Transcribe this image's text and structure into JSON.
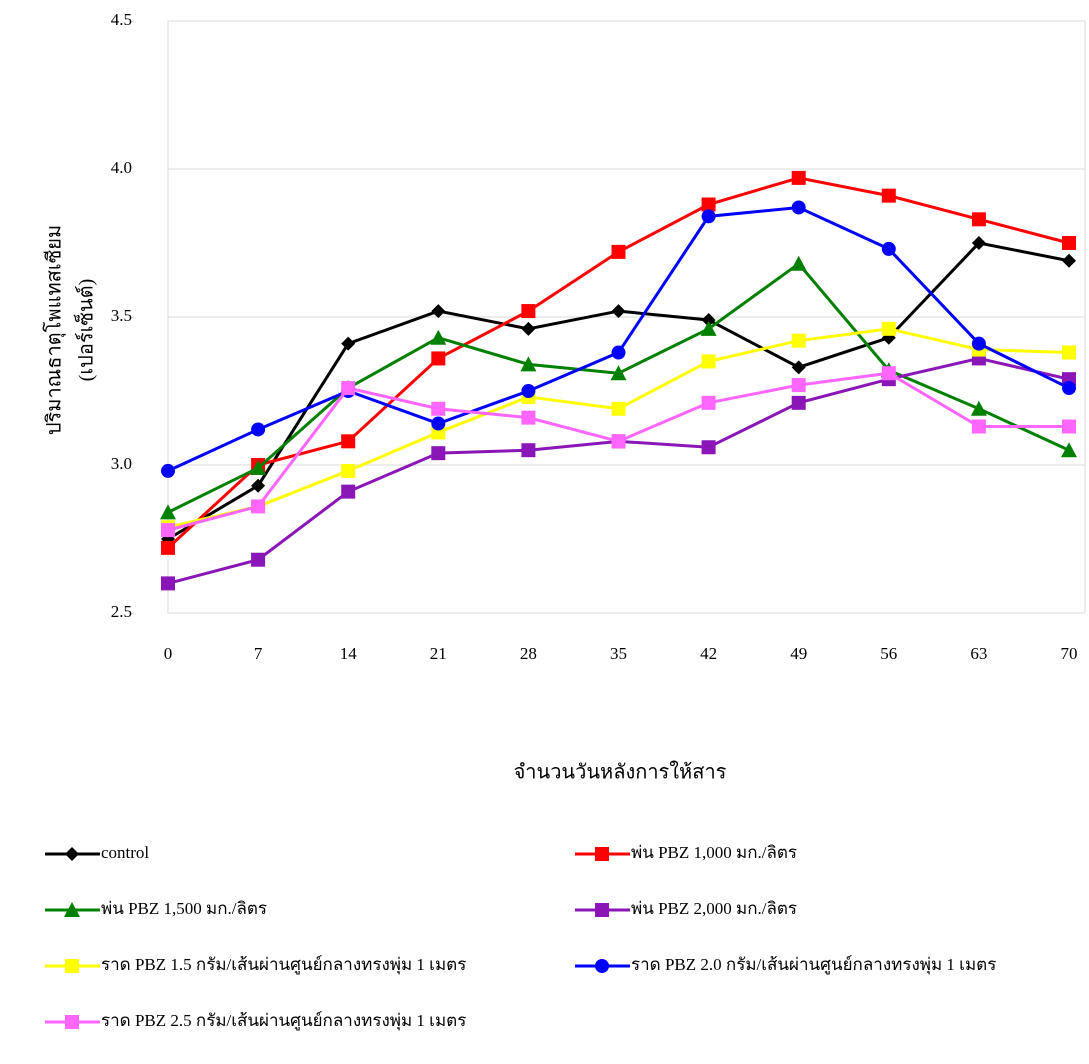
{
  "chart_data": {
    "type": "line",
    "y_label": [
      "ปริมาณธาตุโพแทสเซียม",
      "(เปอร์เซ็นต์)"
    ],
    "x_label": "จำนวนวันหลังการให้สาร",
    "x": [
      0,
      7,
      14,
      21,
      28,
      35,
      42,
      49,
      56,
      63,
      70
    ],
    "xlim": [
      0,
      70
    ],
    "xticks": [
      0,
      7,
      14,
      21,
      28,
      35,
      42,
      49,
      56,
      63,
      70
    ],
    "ylim": [
      2.5,
      4.5
    ],
    "yticks": [
      2.5,
      {
        "value": 3,
        "label": "3.0"
      },
      3.5,
      {
        "value": 4,
        "label": "4.0"
      },
      4.5
    ],
    "grid": true,
    "series": [
      {
        "name": "control",
        "color": "#000000",
        "marker": "diamond",
        "values": [
          2.75,
          2.93,
          3.41,
          3.52,
          3.46,
          3.52,
          3.49,
          3.33,
          3.43,
          3.75,
          3.69
        ]
      },
      {
        "name": "พ่น PBZ 1,000 มก./ลิตร",
        "color": "#ff0000",
        "marker": "square",
        "values": [
          2.72,
          3.0,
          3.08,
          3.36,
          3.52,
          3.72,
          3.88,
          3.97,
          3.91,
          3.83,
          3.75
        ]
      },
      {
        "name": "พ่น PBZ 1,500 มก./ลิตร",
        "color": "#008000",
        "marker": "triangle",
        "values": [
          2.84,
          2.99,
          3.26,
          3.43,
          3.34,
          3.31,
          3.46,
          3.68,
          3.32,
          3.19,
          3.05
        ]
      },
      {
        "name": "พ่น PBZ 2,000 มก./ลิตร",
        "color": "#8a16b8",
        "marker": "square",
        "values": [
          2.6,
          2.68,
          2.91,
          3.04,
          3.05,
          3.08,
          3.06,
          3.21,
          3.29,
          3.36,
          3.29
        ]
      },
      {
        "name": "ราด PBZ 1.5 กรัม/เส้นผ่านศูนย์กลางทรงพุ่ม 1 เมตร",
        "color": "#ffff00",
        "marker": "square",
        "values": [
          2.79,
          2.86,
          2.98,
          3.11,
          3.23,
          3.19,
          3.35,
          3.42,
          3.46,
          3.39,
          3.38
        ]
      },
      {
        "name": "ราด PBZ 2.0 กรัม/เส้นผ่านศูนย์กลางทรงพุ่ม 1 เมตร",
        "color": "#0000ff",
        "marker": "circle",
        "values": [
          2.98,
          3.12,
          3.25,
          3.14,
          3.25,
          3.38,
          3.84,
          3.87,
          3.73,
          3.41,
          3.26
        ]
      },
      {
        "name": "ราด PBZ 2.5 กรัม/เส้นผ่านศูนย์กลางทรงพุ่ม 1 เมตร",
        "color": "#ff66ff",
        "marker": "square",
        "values": [
          2.78,
          2.86,
          3.26,
          3.19,
          3.16,
          3.08,
          3.21,
          3.27,
          3.31,
          3.13,
          3.13
        ]
      }
    ]
  }
}
